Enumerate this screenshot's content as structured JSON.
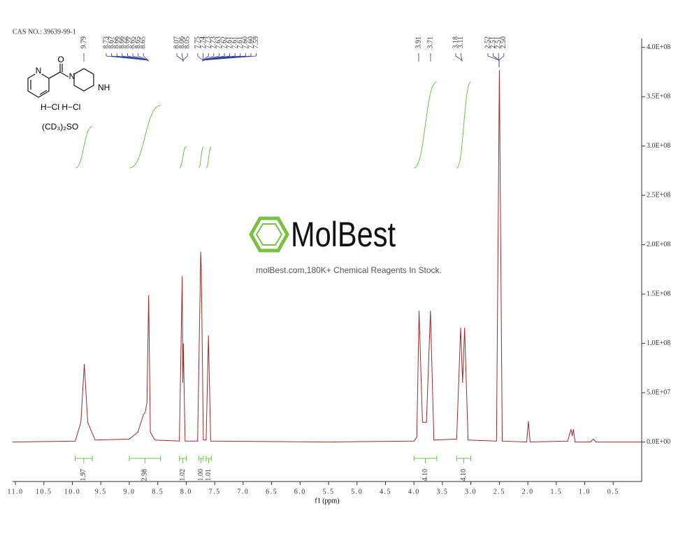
{
  "header": {
    "cas": "CAS NO.: 39639-99-1"
  },
  "structure": {
    "atoms": [
      "O",
      "N",
      "N",
      "NH"
    ],
    "salt": "H−Cl  H−Cl",
    "solvent": "(CD₃)₂SO"
  },
  "watermark": {
    "brand": "MolBest",
    "tagline": "molBest.com,180K+ Chemical Reagents In Stock."
  },
  "chart_data": {
    "type": "nmr",
    "xlabel": "f1 (ppm)",
    "color": "#a0282a",
    "integral_color": "#6cc24a",
    "label_color": "#2b3a9a",
    "x": [
      11.05,
      9.95,
      9.85,
      9.79,
      9.73,
      9.6,
      9.0,
      8.85,
      8.75,
      8.72,
      8.69,
      8.66,
      8.63,
      8.55,
      8.12,
      8.07,
      8.06,
      8.05,
      8.02,
      7.8,
      7.745,
      7.735,
      7.7,
      7.65,
      7.61,
      7.57,
      5.5,
      4.0,
      3.95,
      3.91,
      3.85,
      3.78,
      3.71,
      3.65,
      3.25,
      3.18,
      3.145,
      3.11,
      3.05,
      2.55,
      2.5,
      2.45,
      2.02,
      1.99,
      1.96,
      1.3,
      1.24,
      1.22,
      1.2,
      1.17,
      0.9,
      0.85,
      0.8,
      0
    ],
    "values": [
      0,
      1000000,
      20000000,
      79000000,
      20000000,
      2000000,
      3000000,
      10000000,
      28000000,
      30000000,
      40000000,
      149000000,
      10000000,
      2000000,
      1000000,
      168000000,
      60000000,
      100000000,
      1000000,
      1000000,
      193000000,
      175000000,
      2000000,
      2000000,
      108000000,
      1000000,
      0,
      1000000,
      5000000,
      133000000,
      20000000,
      20000000,
      133000000,
      2000000,
      3000000,
      116000000,
      60000000,
      116000000,
      2000000,
      1000000,
      377000000,
      1000000,
      0,
      21000000,
      0,
      1000000,
      13000000,
      6000000,
      13000000,
      0,
      0,
      3000000,
      0,
      0
    ],
    "xlim": [
      11.05,
      0
    ],
    "ylim": [
      -40000000,
      409000000
    ],
    "xticks": [
      {
        "value": 11,
        "label": "11.0"
      },
      10.5,
      {
        "value": 10,
        "label": "10.0"
      },
      9.5,
      {
        "value": 9,
        "label": "9.0"
      },
      8.5,
      {
        "value": 8,
        "label": "8.0"
      },
      7.5,
      {
        "value": 7,
        "label": "7.0"
      },
      6.5,
      {
        "value": 6,
        "label": "6.0"
      },
      5.5,
      {
        "value": 5,
        "label": "5.0"
      },
      4.5,
      {
        "value": 4,
        "label": "4.0"
      },
      3.5,
      {
        "value": 3,
        "label": "3.0"
      },
      2.5,
      {
        "value": 2,
        "label": "2.0"
      },
      1.5,
      {
        "value": 1,
        "label": "1.0"
      },
      0.5
    ],
    "yticks": [
      {
        "value": 0,
        "label": "0.0E+00"
      },
      {
        "value": 50000000,
        "label": "5.0E+07"
      },
      {
        "value": 100000000,
        "label": "1.0E+08"
      },
      {
        "value": 150000000,
        "label": "1.5E+08"
      },
      {
        "value": 200000000,
        "label": "2.0E+08"
      },
      {
        "value": 250000000,
        "label": "2.5E+08"
      },
      {
        "value": 300000000,
        "label": "3.0E+08"
      },
      {
        "value": 350000000,
        "label": "3.5E+08"
      },
      {
        "value": 400000000,
        "label": "4.0E+08"
      }
    ],
    "peak_labels": [
      [
        "9.79"
      ],
      [
        "8.73",
        "8.67",
        "8.66",
        "8.66",
        "8.66",
        "8.65",
        "8.65",
        "8.65"
      ],
      [
        "8.07",
        "8.06",
        "8.05"
      ],
      [
        "7.75",
        "7.74",
        "7.73",
        "7.73",
        "7.63",
        "7.62",
        "7.61",
        "7.61",
        "7.61",
        "7.60",
        "7.60",
        "7.59"
      ],
      [
        "3.91"
      ],
      [
        "3.71"
      ],
      [
        "3.18",
        "3.11"
      ],
      [
        "2.52",
        "2.51",
        "2.51",
        "2.50"
      ]
    ],
    "integrals": [
      {
        "value": 1.97,
        "range": [
          9.95,
          9.65
        ]
      },
      {
        "value": 2.98,
        "range": [
          9.0,
          8.45
        ]
      },
      {
        "value": 1.02,
        "range": [
          8.12,
          8.0
        ]
      },
      {
        "value": 1,
        "label": "1.00",
        "range": [
          7.78,
          7.7
        ]
      },
      {
        "value": 1.01,
        "range": [
          7.65,
          7.56
        ]
      },
      {
        "value": 4.1,
        "label": "4.10",
        "range": [
          4.0,
          3.6
        ]
      },
      {
        "value": 4.1,
        "label": "4.10",
        "range": [
          3.25,
          3.0
        ]
      }
    ]
  }
}
